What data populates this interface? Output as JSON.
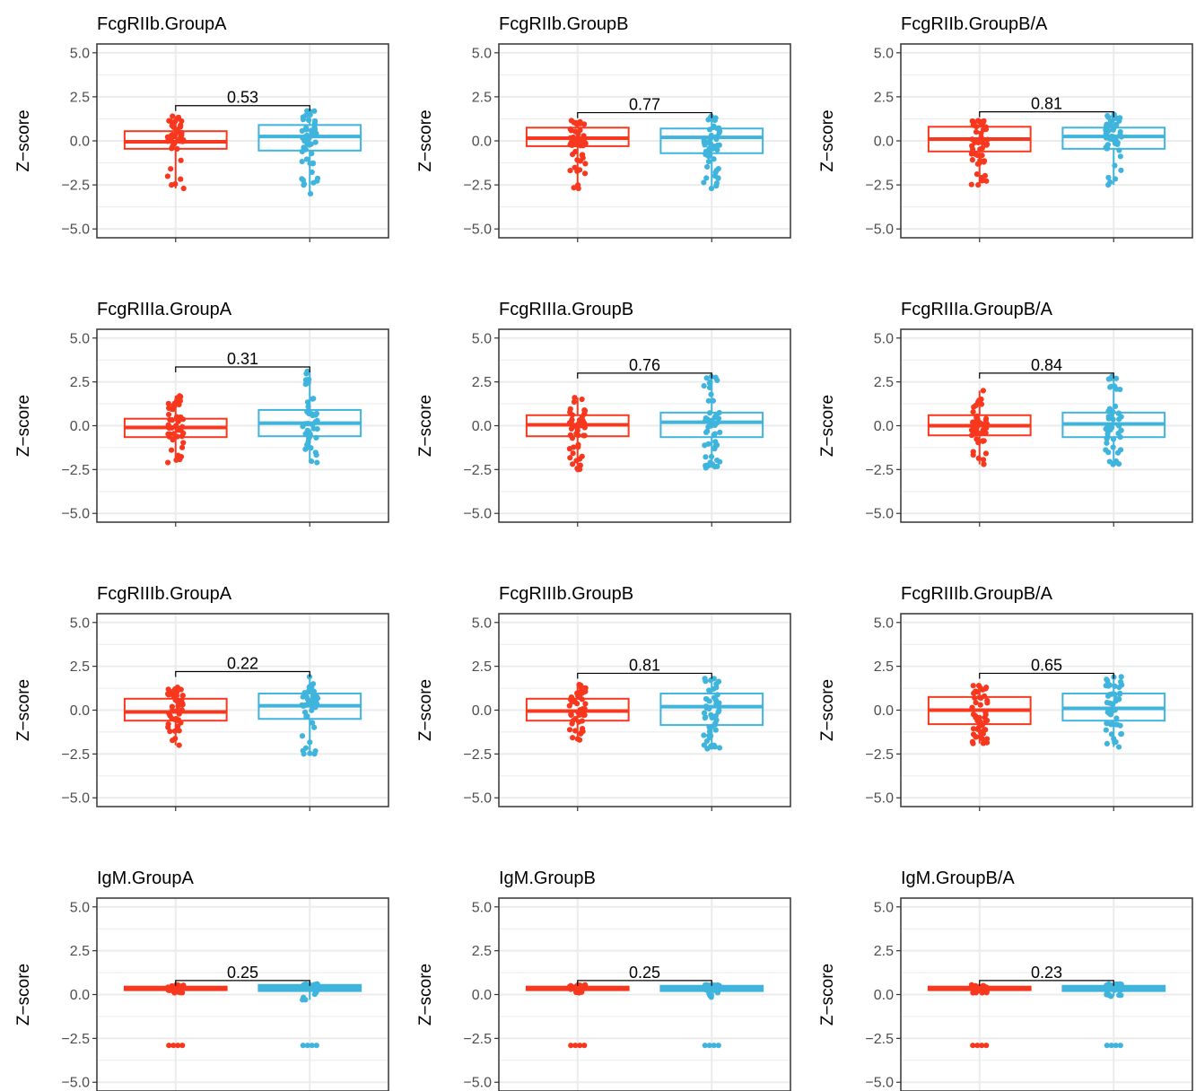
{
  "chart_data": {
    "type": "box",
    "y_axis": {
      "label": "Z−score",
      "ylim": [
        -5.5,
        5.5
      ],
      "ticks": [
        5.0,
        2.5,
        0.0,
        -2.5,
        -5.0
      ],
      "tick_labels": [
        "5.0",
        "2.5",
        "0.0",
        "−2.5",
        "−5.0"
      ]
    },
    "groups": [
      {
        "color": "#f8381e"
      },
      {
        "color": "#3fb4dc"
      }
    ],
    "grid": true,
    "legend": "none",
    "layout": "4x3",
    "panels": [
      {
        "title": "FcgRIIb.GroupA",
        "p_value": "0.53",
        "bracket_y": 2.0,
        "boxes": [
          {
            "q1": -0.45,
            "median": -0.05,
            "q3": 0.55,
            "min": -2.7,
            "max": 1.4
          },
          {
            "q1": -0.55,
            "median": 0.25,
            "q3": 0.9,
            "min": -3.0,
            "max": 1.7
          }
        ]
      },
      {
        "title": "FcgRIIb.GroupB",
        "p_value": "0.77",
        "bracket_y": 1.6,
        "boxes": [
          {
            "q1": -0.3,
            "median": 0.15,
            "q3": 0.75,
            "min": -2.7,
            "max": 1.15
          },
          {
            "q1": -0.7,
            "median": 0.2,
            "q3": 0.7,
            "min": -2.7,
            "max": 1.4
          }
        ]
      },
      {
        "title": "FcgRIIb.GroupB/A",
        "p_value": "0.81",
        "bracket_y": 1.65,
        "boxes": [
          {
            "q1": -0.6,
            "median": 0.1,
            "q3": 0.8,
            "min": -2.5,
            "max": 1.15
          },
          {
            "q1": -0.45,
            "median": 0.25,
            "q3": 0.75,
            "min": -2.5,
            "max": 1.5
          }
        ]
      },
      {
        "title": "FcgRIIIa.GroupA",
        "p_value": "0.31",
        "bracket_y": 3.35,
        "boxes": [
          {
            "q1": -0.65,
            "median": -0.1,
            "q3": 0.4,
            "min": -2.1,
            "max": 1.7
          },
          {
            "q1": -0.6,
            "median": 0.15,
            "q3": 0.9,
            "min": -2.1,
            "max": 3.1
          }
        ]
      },
      {
        "title": "FcgRIIIa.GroupB",
        "p_value": "0.76",
        "bracket_y": 3.0,
        "boxes": [
          {
            "q1": -0.6,
            "median": 0.05,
            "q3": 0.6,
            "min": -2.5,
            "max": 1.6
          },
          {
            "q1": -0.65,
            "median": 0.2,
            "q3": 0.75,
            "min": -2.4,
            "max": 2.8
          }
        ]
      },
      {
        "title": "FcgRIIIa.GroupB/A",
        "p_value": "0.84",
        "bracket_y": 3.0,
        "boxes": [
          {
            "q1": -0.55,
            "median": 0.0,
            "q3": 0.6,
            "min": -2.2,
            "max": 2.0
          },
          {
            "q1": -0.65,
            "median": 0.1,
            "q3": 0.75,
            "min": -2.2,
            "max": 2.8
          }
        ]
      },
      {
        "title": "FcgRIIIb.GroupA",
        "p_value": "0.22",
        "bracket_y": 2.2,
        "boxes": [
          {
            "q1": -0.6,
            "median": -0.1,
            "q3": 0.65,
            "min": -2.0,
            "max": 1.3
          },
          {
            "q1": -0.5,
            "median": 0.25,
            "q3": 0.95,
            "min": -2.5,
            "max": 1.9
          }
        ]
      },
      {
        "title": "FcgRIIIb.GroupB",
        "p_value": "0.81",
        "bracket_y": 2.1,
        "boxes": [
          {
            "q1": -0.6,
            "median": -0.05,
            "q3": 0.65,
            "min": -1.7,
            "max": 1.45
          },
          {
            "q1": -0.85,
            "median": 0.2,
            "q3": 0.95,
            "min": -2.2,
            "max": 1.8
          }
        ]
      },
      {
        "title": "FcgRIIIb.GroupB/A",
        "p_value": "0.65",
        "bracket_y": 2.1,
        "boxes": [
          {
            "q1": -0.8,
            "median": 0.0,
            "q3": 0.75,
            "min": -1.9,
            "max": 1.4
          },
          {
            "q1": -0.6,
            "median": 0.1,
            "q3": 0.95,
            "min": -2.1,
            "max": 1.9
          }
        ]
      },
      {
        "title": "IgM.GroupA",
        "p_value": "0.25",
        "bracket_y": 0.8,
        "boxes": [
          {
            "q1": 0.25,
            "median": 0.35,
            "q3": 0.45,
            "min": 0.1,
            "max": 0.55,
            "outliers": [
              -2.9
            ]
          },
          {
            "q1": 0.2,
            "median": 0.35,
            "q3": 0.55,
            "min": -0.3,
            "max": 0.6,
            "outliers": [
              -2.9
            ]
          }
        ]
      },
      {
        "title": "IgM.GroupB",
        "p_value": "0.25",
        "bracket_y": 0.8,
        "boxes": [
          {
            "q1": 0.25,
            "median": 0.35,
            "q3": 0.45,
            "min": 0.1,
            "max": 0.55,
            "outliers": [
              -2.9
            ]
          },
          {
            "q1": 0.2,
            "median": 0.35,
            "q3": 0.5,
            "min": -0.15,
            "max": 0.55,
            "outliers": [
              -2.9
            ]
          }
        ]
      },
      {
        "title": "IgM.GroupB/A",
        "p_value": "0.23",
        "bracket_y": 0.8,
        "boxes": [
          {
            "q1": 0.25,
            "median": 0.35,
            "q3": 0.45,
            "min": 0.1,
            "max": 0.55,
            "outliers": [
              -2.9
            ]
          },
          {
            "q1": 0.2,
            "median": 0.35,
            "q3": 0.5,
            "min": -0.1,
            "max": 0.6,
            "outliers": [
              -2.9
            ]
          }
        ]
      }
    ]
  }
}
